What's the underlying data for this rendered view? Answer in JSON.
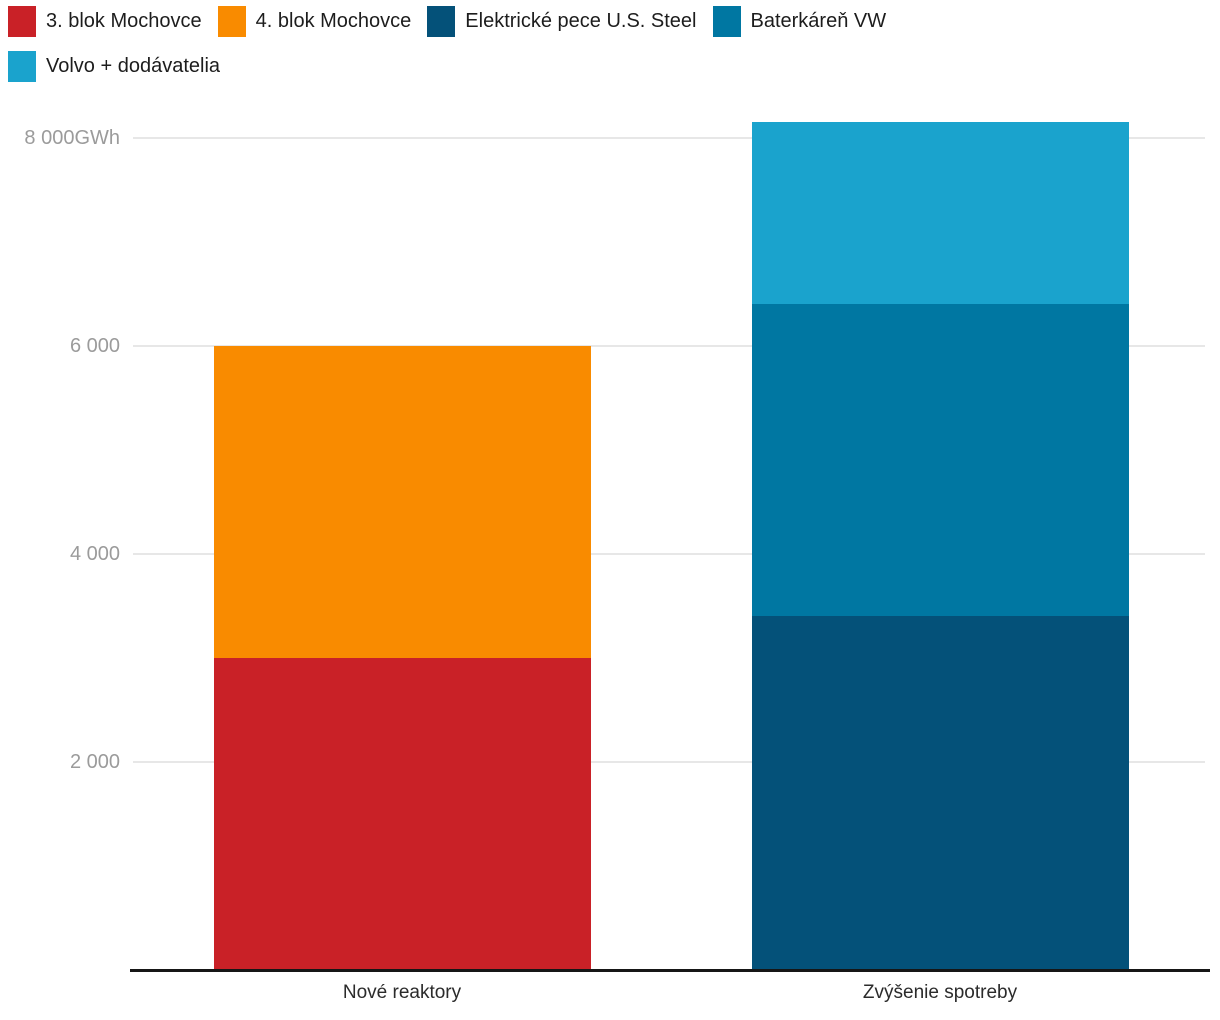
{
  "chart_data": {
    "type": "bar",
    "stacked": true,
    "categories": [
      "Nové reaktory",
      "Zvýšenie spotreby"
    ],
    "series": [
      {
        "name": "3. blok Mochovce",
        "color": "#c92127",
        "values": [
          3000,
          0
        ]
      },
      {
        "name": "4. blok Mochovce",
        "color": "#f98b00",
        "values": [
          3000,
          0
        ]
      },
      {
        "name": "Elektrické pece U.S. Steel",
        "color": "#045179",
        "values": [
          0,
          3400
        ]
      },
      {
        "name": "Baterkáreň VW",
        "color": "#0077a2",
        "values": [
          0,
          3000
        ]
      },
      {
        "name": "Volvo + dodávatelia",
        "color": "#1aa3cd",
        "values": [
          0,
          1750
        ]
      }
    ],
    "yticks": [
      {
        "value": 8000,
        "label": "8 000GWh"
      },
      {
        "value": 6000,
        "label": "6 000"
      },
      {
        "value": 4000,
        "label": "4 000"
      },
      {
        "value": 2000,
        "label": "2 000"
      }
    ],
    "unit": "GWh",
    "ylim": [
      0,
      8320
    ],
    "grid": "horizontal",
    "legend_position": "top-left",
    "totals": {
      "Nové reaktory": 6000,
      "Zvýšenie spotreby": 8150
    }
  },
  "styles": {
    "background": "#ffffff",
    "grid_color": "#e7e7e7",
    "axis_color": "#161616",
    "tick_label_color": "#9b9b9b",
    "category_label_color": "#2b2b2b",
    "legend_text_color": "#1d1d1d"
  }
}
